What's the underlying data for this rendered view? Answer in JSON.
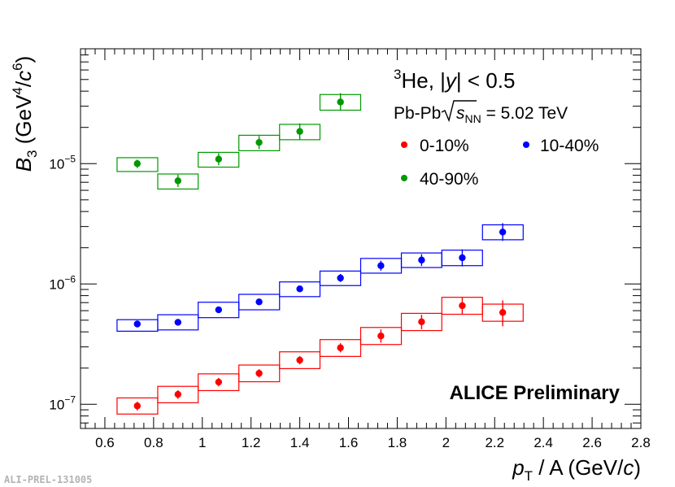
{
  "chart_data": {
    "type": "scatter",
    "title": "",
    "ylog": true,
    "xlim": [
      0.5,
      2.8
    ],
    "ylim": [
      6.3e-08,
      9e-05
    ],
    "x_ticks": [
      0.6,
      0.8,
      1,
      1.2,
      1.4,
      1.6,
      1.8,
      2,
      2.2,
      2.4,
      2.6,
      2.8
    ],
    "x_tick_labels": [
      "0.6",
      "0.8",
      "1",
      "1.2",
      "1.4",
      "1.6",
      "1.8",
      "2",
      "2.2",
      "2.4",
      "2.6",
      "2.8"
    ],
    "y_ticks": [
      1e-07,
      1e-06,
      1e-05
    ],
    "y_tick_bases": [
      "10",
      "10",
      "10"
    ],
    "y_tick_exps": [
      "−7",
      "−6",
      "−5"
    ],
    "xlabel": {
      "var": "p",
      "sub": "T",
      "rest": " / A (GeV/",
      "unit": "c",
      "close": ")"
    },
    "ylabel": {
      "var": "B",
      "sub": "3",
      "open": " (GeV",
      "exp1": "4",
      "slash": "/",
      "unit": "c",
      "exp2": "6",
      "close": ")"
    },
    "annotation": {
      "sup": "3",
      "he": "He, |",
      "y": "y",
      "rest": "| < 0.5"
    },
    "system": {
      "pre": "Pb-Pb ",
      "s": "s",
      "sub": "NN",
      "post": " = 5.02 TeV"
    },
    "legend": [
      {
        "name": "0-10%",
        "color": "#ff0000"
      },
      {
        "name": "10-40%",
        "color": "#0000ff"
      },
      {
        "name": "40-90%",
        "color": "#009900"
      }
    ],
    "series": [
      {
        "name": "0-10%",
        "color": "#ff0000",
        "x": [
          0.733,
          0.9,
          1.067,
          1.233,
          1.4,
          1.567,
          1.733,
          1.9,
          2.067,
          2.233
        ],
        "x_low": [
          0.65,
          0.817,
          0.983,
          1.15,
          1.317,
          1.483,
          1.65,
          1.817,
          1.983,
          2.15
        ],
        "x_high": [
          0.817,
          0.983,
          1.15,
          1.317,
          1.483,
          1.65,
          1.817,
          1.983,
          2.15,
          2.317
        ],
        "y": [
          9.7e-08,
          1.21e-07,
          1.53e-07,
          1.81e-07,
          2.33e-07,
          2.95e-07,
          3.7e-07,
          4.85e-07,
          6.6e-07,
          5.8e-07
        ],
        "stat_low": [
          8.9e-08,
          1.11e-07,
          1.41e-07,
          1.67e-07,
          2.15e-07,
          2.7e-07,
          3.25e-07,
          4.2e-07,
          5.6e-07,
          4.45e-07
        ],
        "stat_high": [
          1.05e-07,
          1.31e-07,
          1.66e-07,
          1.96e-07,
          2.52e-07,
          3.22e-07,
          4.2e-07,
          5.55e-07,
          7.8e-07,
          7.3e-07
        ],
        "sys_low": [
          8.3e-08,
          1.03e-07,
          1.3e-07,
          1.54e-07,
          1.98e-07,
          2.5e-07,
          3.14e-07,
          4.1e-07,
          5.6e-07,
          4.9e-07
        ],
        "sys_high": [
          1.13e-07,
          1.41e-07,
          1.79e-07,
          2.12e-07,
          2.73e-07,
          3.45e-07,
          4.35e-07,
          5.7e-07,
          7.75e-07,
          6.8e-07
        ]
      },
      {
        "name": "10-40%",
        "color": "#0000ff",
        "x": [
          0.733,
          0.9,
          1.067,
          1.233,
          1.4,
          1.567,
          1.733,
          1.9,
          2.067,
          2.233
        ],
        "x_low": [
          0.65,
          0.817,
          0.983,
          1.15,
          1.317,
          1.483,
          1.65,
          1.817,
          1.983,
          2.15
        ],
        "x_high": [
          0.817,
          0.983,
          1.15,
          1.317,
          1.483,
          1.65,
          1.817,
          1.983,
          2.15,
          2.317
        ],
        "y": [
          4.65e-07,
          4.8e-07,
          6.1e-07,
          7.1e-07,
          9.1e-07,
          1.12e-06,
          1.42e-06,
          1.58e-06,
          1.65e-06,
          2.7e-06
        ],
        "stat_low": [
          4.45e-07,
          4.6e-07,
          5.85e-07,
          6.8e-07,
          8.7e-07,
          1.04e-06,
          1.29e-06,
          1.41e-06,
          1.4e-06,
          2.28e-06
        ],
        "stat_high": [
          4.85e-07,
          5e-07,
          6.35e-07,
          7.4e-07,
          9.5e-07,
          1.21e-06,
          1.56e-06,
          1.77e-06,
          1.94e-06,
          3.2e-06
        ],
        "sys_low": [
          4.05e-07,
          4.15e-07,
          5.25e-07,
          6.1e-07,
          7.85e-07,
          9.7e-07,
          1.23e-06,
          1.37e-06,
          1.42e-06,
          2.33e-06
        ],
        "sys_high": [
          5.05e-07,
          5.55e-07,
          7.05e-07,
          8.2e-07,
          1.04e-06,
          1.28e-06,
          1.63e-06,
          1.81e-06,
          1.91e-06,
          3.1e-06
        ]
      },
      {
        "name": "40-90%",
        "color": "#009900",
        "x": [
          0.733,
          0.9,
          1.067,
          1.233,
          1.4,
          1.567
        ],
        "x_low": [
          0.65,
          0.817,
          0.983,
          1.15,
          1.317,
          1.483
        ],
        "x_high": [
          0.817,
          0.983,
          1.15,
          1.317,
          1.483,
          1.65
        ],
        "y": [
          1e-05,
          7.2e-06,
          1.09e-05,
          1.5e-05,
          1.85e-05,
          3.25e-05
        ],
        "stat_low": [
          9.2e-06,
          6.4e-06,
          9.7e-06,
          1.32e-05,
          1.58e-05,
          2.75e-05
        ],
        "stat_high": [
          1.08e-05,
          8.1e-06,
          1.22e-05,
          1.7e-05,
          2.16e-05,
          3.85e-05
        ],
        "sys_low": [
          8.6e-06,
          6.15e-06,
          9.35e-06,
          1.28e-05,
          1.58e-05,
          2.78e-05
        ],
        "sys_high": [
          1.12e-05,
          8.2e-06,
          1.24e-05,
          1.72e-05,
          2.12e-05,
          3.75e-05
        ]
      }
    ],
    "preliminary_label": "ALICE Preliminary",
    "figure_id": "ALI-PREL-131005"
  }
}
